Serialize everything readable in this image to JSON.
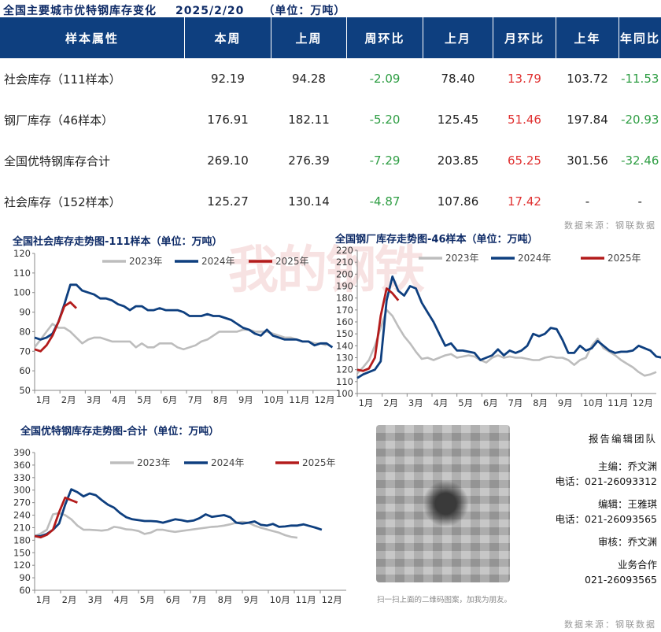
{
  "header": {
    "title": "全国主要城市优特钢库存变化",
    "date": "2025/2/20",
    "unit": "（单位：万吨）"
  },
  "table": {
    "columns": [
      "样本属性",
      "本周",
      "上周",
      "周环比",
      "上月",
      "月环比",
      "上年",
      "年同比"
    ],
    "rows": [
      {
        "name": "社会库存（111样本）",
        "this_week": "92.19",
        "last_week": "94.28",
        "wow": "-2.09",
        "last_month": "78.40",
        "mom": "13.79",
        "last_year": "103.72",
        "yoy": "-11.53"
      },
      {
        "name": "钢厂库存（46样本）",
        "this_week": "176.91",
        "last_week": "182.11",
        "wow": "-5.20",
        "last_month": "125.45",
        "mom": "51.46",
        "last_year": "197.84",
        "yoy": "-20.93"
      },
      {
        "name": "全国优特钢库存合计",
        "this_week": "269.10",
        "last_week": "276.39",
        "wow": "-7.29",
        "last_month": "203.85",
        "mom": "65.25",
        "last_year": "301.56",
        "yoy": "-32.46"
      },
      {
        "name": "社会库存（152样本）",
        "this_week": "125.27",
        "last_week": "130.14",
        "wow": "-4.87",
        "last_month": "107.86",
        "mom": "17.42",
        "last_year": "-",
        "yoy": "-"
      }
    ],
    "source": "数据来源：钢联数据"
  },
  "watermark": "我的钢铁 Mysteel.com",
  "colors": {
    "y2023": "#bdbdbd",
    "y2024": "#0e3f7f",
    "y2025": "#b31b1b",
    "header_bg": "#0e3f7f",
    "pos": "#e03131",
    "neg": "#2f9e44"
  },
  "chart_data": [
    {
      "type": "line",
      "title": "全国社会库存走势图-111样本（单位：万吨）",
      "x_labels": [
        "1月",
        "2月",
        "3月",
        "4月",
        "5月",
        "6月",
        "7月",
        "8月",
        "9月",
        "10月",
        "11月",
        "12月"
      ],
      "ylim": [
        50,
        120
      ],
      "yticks": [
        50,
        60,
        70,
        80,
        90,
        100,
        110,
        120
      ],
      "series": [
        {
          "name": "2023年",
          "color": "#bdbdbd",
          "values": [
            72,
            76,
            80,
            84,
            82,
            82,
            80,
            77,
            74,
            76,
            77,
            77,
            76,
            75,
            75,
            75,
            75,
            72,
            74,
            72,
            72,
            74,
            74,
            74,
            72,
            71,
            72,
            73,
            75,
            76,
            78,
            80,
            80,
            80,
            80,
            81,
            81,
            80,
            80,
            80,
            79,
            78,
            77,
            77,
            76,
            75,
            75,
            74,
            74,
            73
          ]
        },
        {
          "name": "2024年",
          "color": "#0e3f7f",
          "values": [
            77,
            76,
            77,
            79,
            85,
            94,
            104,
            104,
            101,
            100,
            99,
            97,
            97,
            96,
            94,
            93,
            91,
            93,
            93,
            91,
            91,
            92,
            91,
            91,
            91,
            90,
            88,
            88,
            88,
            89,
            88,
            88,
            87,
            86,
            84,
            82,
            81,
            79,
            78,
            81,
            78,
            77,
            76,
            76,
            76,
            75,
            75,
            73,
            74,
            74,
            72
          ]
        },
        {
          "name": "2025年",
          "color": "#b31b1b",
          "values": [
            71,
            70,
            73,
            78,
            85,
            93,
            95,
            92
          ]
        }
      ]
    },
    {
      "type": "line",
      "title": "全国钢厂库存走势图-46样本（单位：万吨）",
      "x_labels": [
        "1月",
        "2月",
        "3月",
        "4月",
        "5月",
        "6月",
        "7月",
        "8月",
        "9月",
        "10月",
        "11月",
        "12月"
      ],
      "ylim": [
        100,
        220
      ],
      "yticks": [
        100,
        110,
        120,
        130,
        140,
        150,
        160,
        170,
        180,
        190,
        200,
        210,
        220
      ],
      "series": [
        {
          "name": "2023年",
          "color": "#bdbdbd",
          "values": [
            117,
            122,
            128,
            140,
            155,
            170,
            165,
            156,
            148,
            142,
            135,
            129,
            130,
            128,
            130,
            132,
            133,
            130,
            131,
            132,
            131,
            128,
            126,
            130,
            132,
            130,
            131,
            130,
            130,
            129,
            128,
            128,
            130,
            131,
            130,
            130,
            128,
            124,
            128,
            130,
            140,
            146,
            138,
            135,
            132,
            128,
            125,
            122,
            118,
            115,
            116,
            118
          ]
        },
        {
          "name": "2024年",
          "color": "#0e3f7f",
          "values": [
            113,
            116,
            118,
            120,
            127,
            178,
            198,
            186,
            182,
            190,
            188,
            176,
            168,
            160,
            150,
            140,
            142,
            136,
            136,
            135,
            134,
            128,
            130,
            132,
            137,
            132,
            136,
            134,
            136,
            140,
            150,
            148,
            150,
            155,
            154,
            145,
            134,
            134,
            140,
            136,
            138,
            144,
            140,
            136,
            134,
            135,
            135,
            136,
            140,
            138,
            136,
            131,
            130,
            126
          ]
        },
        {
          "name": "2025年",
          "color": "#b31b1b",
          "values": [
            120,
            119,
            121,
            130,
            165,
            188,
            184,
            178
          ]
        }
      ]
    },
    {
      "type": "line",
      "title": "全国优特钢库存走势图-合计（单位：万吨）",
      "x_labels": [
        "1月",
        "2月",
        "3月",
        "4月",
        "5月",
        "6月",
        "7月",
        "8月",
        "9月",
        "10月",
        "11月",
        "12月"
      ],
      "ylim": [
        60,
        390
      ],
      "yticks": [
        60,
        90,
        120,
        150,
        180,
        210,
        240,
        270,
        300,
        330,
        360,
        390
      ],
      "series": [
        {
          "name": "2023年",
          "color": "#bdbdbd",
          "values": [
            190,
            196,
            205,
            242,
            245,
            240,
            230,
            215,
            205,
            205,
            204,
            203,
            205,
            212,
            210,
            206,
            205,
            202,
            195,
            198,
            205,
            205,
            202,
            200,
            202,
            204,
            206,
            208,
            210,
            212,
            213,
            215,
            218,
            222,
            224,
            222,
            215,
            210,
            206,
            202,
            198,
            192,
            188,
            186
          ]
        },
        {
          "name": "2024年",
          "color": "#0e3f7f",
          "values": [
            190,
            190,
            195,
            205,
            220,
            265,
            302,
            295,
            285,
            292,
            288,
            276,
            265,
            258,
            245,
            235,
            230,
            228,
            226,
            226,
            225,
            222,
            226,
            230,
            228,
            225,
            227,
            233,
            242,
            236,
            238,
            240,
            235,
            222,
            220,
            222,
            225,
            217,
            215,
            219,
            212,
            213,
            215,
            215,
            218,
            214,
            210,
            205
          ]
        },
        {
          "name": "2025年",
          "color": "#b31b1b",
          "values": [
            190,
            187,
            193,
            205,
            247,
            282,
            276,
            270
          ]
        }
      ]
    }
  ],
  "team": {
    "title": "报告编辑团队",
    "chief": "主编：乔文渊",
    "chief_tel": "电话：021-26093312",
    "editor": "编辑：王雅琪",
    "editor_tel": "电话：021-26093565",
    "review": "审核：乔文渊",
    "biz": "业务合作",
    "biz_tel": "021-26093565"
  },
  "qr_caption": "扫一扫上面的二维码图案，加我为朋友。",
  "footer_source": "数据来源：钢联数据"
}
